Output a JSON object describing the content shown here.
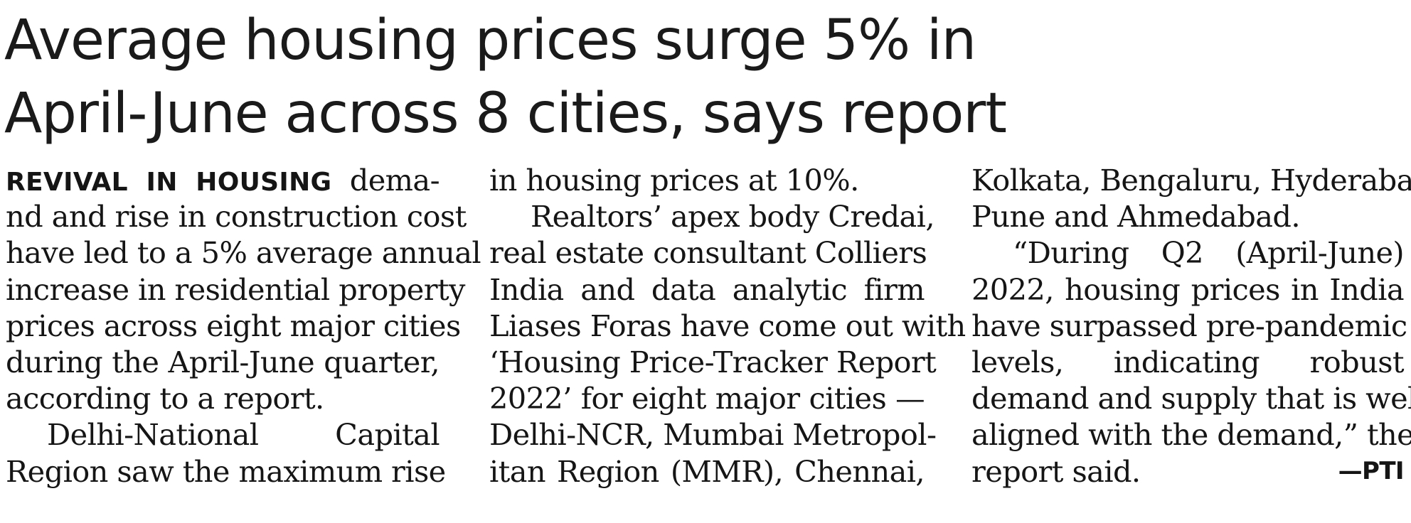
{
  "headline": {
    "line1": "Average housing prices surge 5% in",
    "line2": "April-June across 8 cities, says report"
  },
  "kicker": "REVIVAL IN HOUSING",
  "columns": [
    [
      " dema-",
      "nd and rise in construction cost",
      "have led to a 5% average annual",
      "increase in residential property",
      "prices across eight major cities",
      "during the April-June quarter,",
      "according to a report.",
      "Delhi-National Capital",
      "Region saw the maximum rise"
    ],
    [
      "in housing prices at 10%.",
      "Realtors’ apex body Credai,",
      "real estate consultant Colliers",
      "India and data analytic firm",
      "Liases Foras have come out with",
      "‘Housing Price-Tracker Report",
      "2022’ for eight major cities —",
      "Delhi-NCR, Mumbai Metropol-",
      "itan Region (MMR), Chennai,"
    ],
    [
      "Kolkata, Bengaluru, Hyderabad,",
      "Pune and Ahmedabad.",
      "“During Q2 (April-June)",
      "2022, housing prices in India",
      "have surpassed pre-pandemic",
      "levels, indicating robust",
      "demand and supply that is well-",
      "aligned with the demand,” the",
      "report said."
    ]
  ],
  "credit": "—PTI"
}
